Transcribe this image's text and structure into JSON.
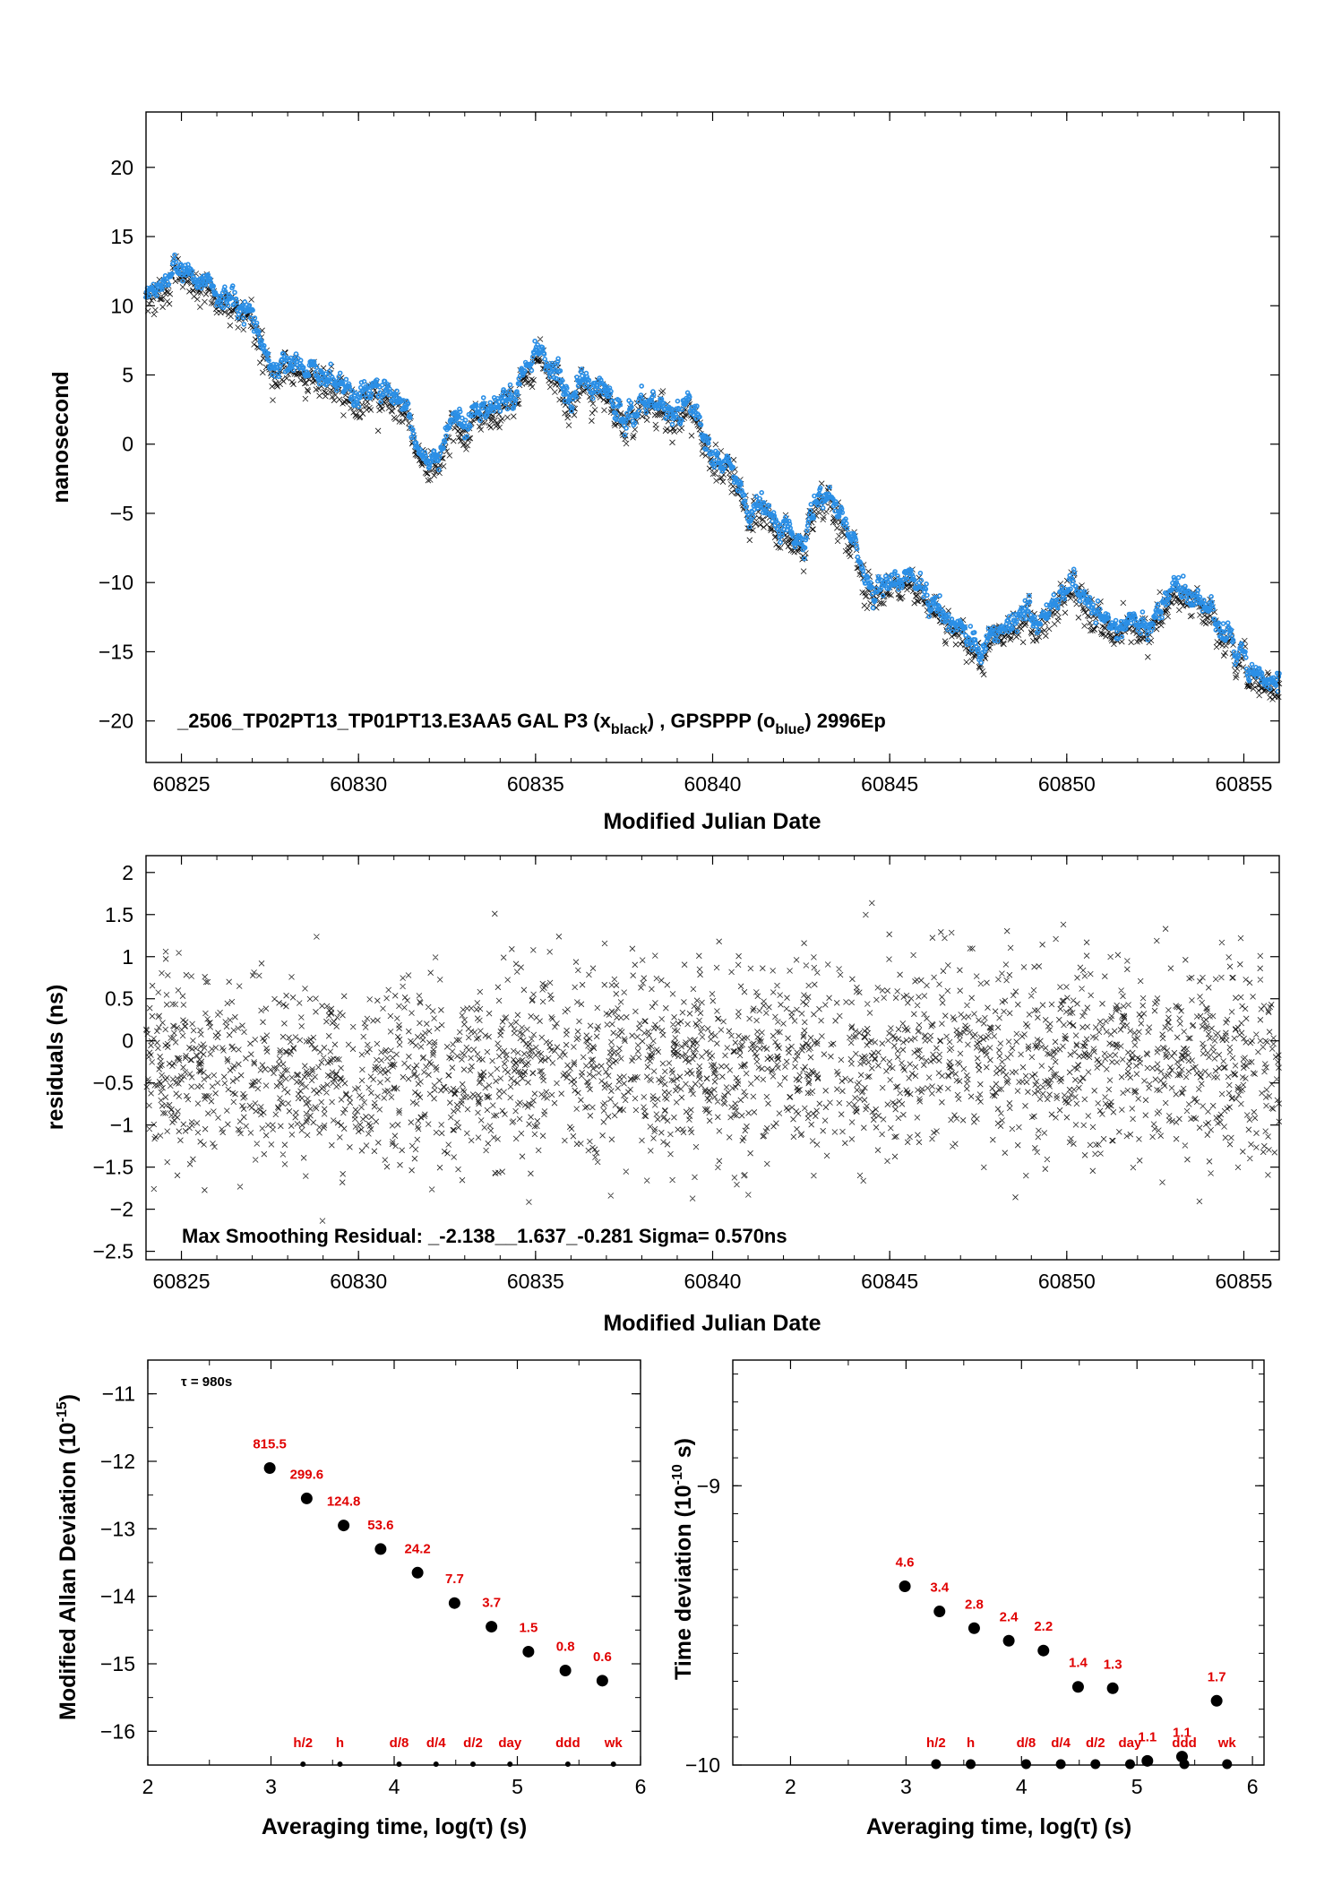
{
  "colors": {
    "black_series": "#111111",
    "blue_series": "#2b8fe6",
    "labels_red": "#e00000",
    "axis": "#000000"
  },
  "panels": {
    "top": {
      "xlabel": "Modified Julian Date",
      "ylabel": "nanosecond",
      "annotation": "_2506_TP02PT13_TP01PT13.E3AA5     GAL P3 (x",
      "annotation_sub1": "black",
      "annotation_mid": ") ,  GPSPPP (o",
      "annotation_sub2": "blue",
      "annotation_end": ")  2996Ep"
    },
    "mid": {
      "xlabel": "Modified Julian Date",
      "ylabel": "residuals (ns)",
      "annotation": "Max Smoothing Residual: _-2.138__1.637_-0.281  Sigma= 0.570ns"
    },
    "bl": {
      "xlabel": "Averaging time, log(τ) (s)",
      "ylabel": "Modified Allan Deviation (10",
      "ylabel_exp": "-15",
      "ylabel_end": ")",
      "tau_note": "τ = 980s"
    },
    "br": {
      "xlabel": "Averaging time, log(τ) (s)",
      "ylabel": "Time deviation (10",
      "ylabel_exp": "-10",
      "ylabel_end": " s)"
    }
  },
  "chart_data": [
    {
      "id": "top",
      "type": "scatter",
      "xlabel": "Modified Julian Date",
      "ylabel": "nanosecond",
      "xlim": [
        60824.0,
        60856.0
      ],
      "ylim": [
        -23.0,
        24.0
      ],
      "xticks": [
        60825,
        60830,
        60835,
        60840,
        60845,
        60850,
        60855
      ],
      "yticks": [
        -20,
        -15,
        -10,
        -5,
        0,
        5,
        10,
        15,
        20
      ],
      "series": [
        {
          "name": "GAL P3 (x black)",
          "marker": "x",
          "color": "#111111"
        },
        {
          "name": "GPSPPP (o blue)",
          "marker": "o",
          "color": "#2b8fe6"
        }
      ],
      "trend_x": [
        60824.0,
        60825.0,
        60826.0,
        60827.0,
        60827.5,
        60828.5,
        60829.5,
        60830.5,
        60831.5,
        60832.0,
        60833.0,
        60834.0,
        60835.0,
        60835.5,
        60836.0,
        60836.5,
        60837.5,
        60838.5,
        60839.5,
        60840.5,
        60841.0,
        60842.0,
        60842.5,
        60843.3,
        60843.8,
        60844.5,
        60845.5,
        60846.5,
        60847.5,
        60848.5,
        60849.5,
        60850.0,
        60851.0,
        60852.0,
        60853.0,
        60853.8,
        60854.5,
        60855.5,
        60856.0
      ],
      "trend_y": [
        10.8,
        12.5,
        11.0,
        10.0,
        6.5,
        5.0,
        3.5,
        4.0,
        1.0,
        -1.0,
        2.0,
        2.5,
        6.0,
        5.5,
        3.0,
        5.0,
        3.0,
        2.5,
        2.0,
        -1.5,
        -4.5,
        -6.0,
        -6.5,
        -3.5,
        -7.0,
        -10.0,
        -9.5,
        -11.5,
        -15.0,
        -12.5,
        -12.5,
        -10.0,
        -12.5,
        -13.0,
        -11.5,
        -10.5,
        -13.5,
        -16.5,
        -18.0
      ]
    },
    {
      "id": "mid",
      "type": "scatter",
      "xlabel": "Modified Julian Date",
      "ylabel": "residuals (ns)",
      "xlim": [
        60824.0,
        60856.0
      ],
      "ylim": [
        -2.6,
        2.2
      ],
      "xticks": [
        60825,
        60830,
        60835,
        60840,
        60845,
        60850,
        60855
      ],
      "yticks": [
        -2.5,
        -2.0,
        -1.5,
        -1.0,
        -0.5,
        0.0,
        0.5,
        1.0,
        1.5,
        2.0
      ],
      "max_residual_min": -2.138,
      "max_residual_max": 1.637,
      "mean": -0.281,
      "sigma": 0.57
    },
    {
      "id": "bl",
      "type": "scatter",
      "xlabel": "Averaging time, log(τ) (s)",
      "ylabel": "Modified Allan Deviation (10^-15)",
      "xlim": [
        2,
        6
      ],
      "ylim": [
        -16.5,
        -10.5
      ],
      "xticks": [
        2,
        3,
        4,
        5,
        6
      ],
      "yticks": [
        -16,
        -15,
        -14,
        -13,
        -12,
        -11
      ],
      "points_x": [
        2.99,
        3.29,
        3.59,
        3.89,
        4.19,
        4.49,
        4.79,
        5.09,
        5.39,
        5.69
      ],
      "points_y": [
        -12.1,
        -12.55,
        -12.95,
        -13.3,
        -13.65,
        -14.1,
        -14.45,
        -14.82,
        -15.1,
        -15.25
      ],
      "labels": [
        "815.5",
        "299.6",
        "124.8",
        "53.6",
        "24.2",
        "7.7",
        "3.7",
        "1.5",
        "0.8",
        "0.6"
      ],
      "interval_labels": [
        "h/2",
        "h",
        "d/8",
        "d/4",
        "d/2",
        "day",
        "ddd",
        "wk"
      ],
      "interval_x": [
        3.26,
        3.56,
        4.04,
        4.34,
        4.64,
        4.94,
        5.41,
        5.78
      ]
    },
    {
      "id": "br",
      "type": "scatter",
      "xlabel": "Averaging time, log(τ) (s)",
      "ylabel": "Time deviation (10^-10 s)",
      "xlim": [
        1.5,
        6.1
      ],
      "ylim": [
        -10.0,
        -8.55
      ],
      "xticks": [
        2,
        3,
        4,
        5,
        6
      ],
      "yticks": [
        -10,
        -9
      ],
      "points_x": [
        2.99,
        3.29,
        3.59,
        3.89,
        4.19,
        4.49,
        4.79,
        5.09,
        5.39,
        5.69
      ],
      "points_y": [
        -9.36,
        -9.45,
        -9.51,
        -9.555,
        -9.59,
        -9.72,
        -9.725,
        -9.985,
        -9.97,
        -9.77
      ],
      "labels": [
        "4.6",
        "3.4",
        "2.8",
        "2.4",
        "2.2",
        "1.4",
        "1.3",
        "1.1",
        "1.1",
        "1.7"
      ],
      "interval_labels": [
        "h/2",
        "h",
        "d/8",
        "d/4",
        "d/2",
        "day",
        "ddd",
        "wk"
      ],
      "interval_x": [
        3.26,
        3.56,
        4.04,
        4.34,
        4.64,
        4.94,
        5.41,
        5.78
      ]
    }
  ]
}
